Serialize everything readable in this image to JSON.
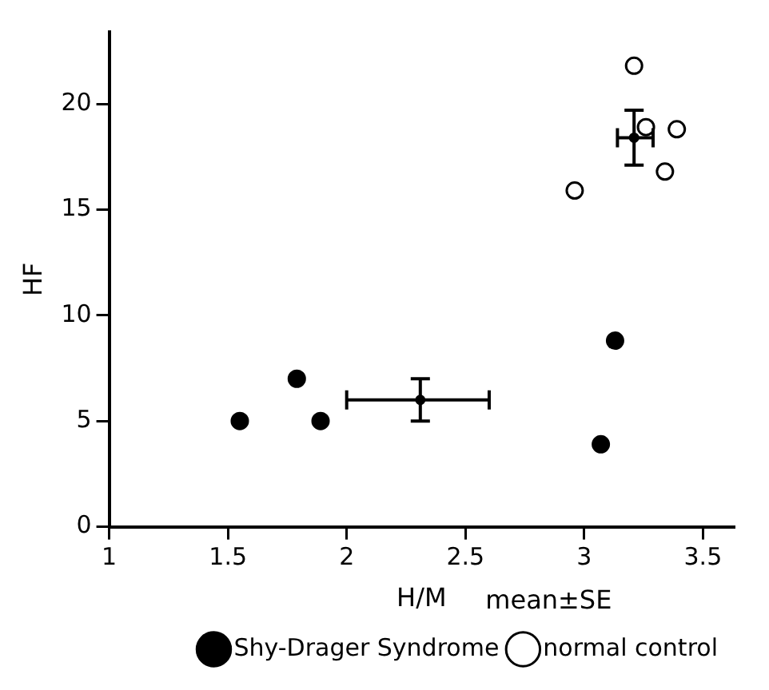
{
  "chart_data": {
    "type": "scatter",
    "xlabel": "H/M",
    "ylabel": "HF",
    "annotations": [
      "mean±SE"
    ],
    "xlim": [
      1,
      3.63
    ],
    "xticks": [
      1,
      1.5,
      2,
      2.5,
      3,
      3.5
    ],
    "ylim": [
      0,
      23.4
    ],
    "yticks": [
      0,
      5,
      10,
      15,
      20
    ],
    "grid": false,
    "legend": "bottom right",
    "marker": "circle",
    "series": [
      {
        "name": "Shy-Drager Syndrome",
        "color": "#000000",
        "x": [
          1.55,
          1.79,
          1.89,
          3.07,
          3.13
        ],
        "values": [
          5,
          7,
          5,
          3.9,
          8.8
        ]
      },
      {
        "name": "normal control",
        "color": "#ffffff",
        "x": [
          2.96,
          3.21,
          3.26,
          3.39,
          3.34
        ],
        "values": [
          15.9,
          21.8,
          18.9,
          18.8,
          16.8
        ]
      },
      {
        "color": "#000000",
        "x": [
          2.31,
          3.21
        ],
        "values": [
          6,
          18.4
        ],
        "errors": [
          1,
          [
            17.1,
            19.7
          ]
        ],
        "xerrors": [
          [
            2.0,
            2.6
          ],
          [
            3.14,
            3.29
          ]
        ]
      }
    ]
  }
}
